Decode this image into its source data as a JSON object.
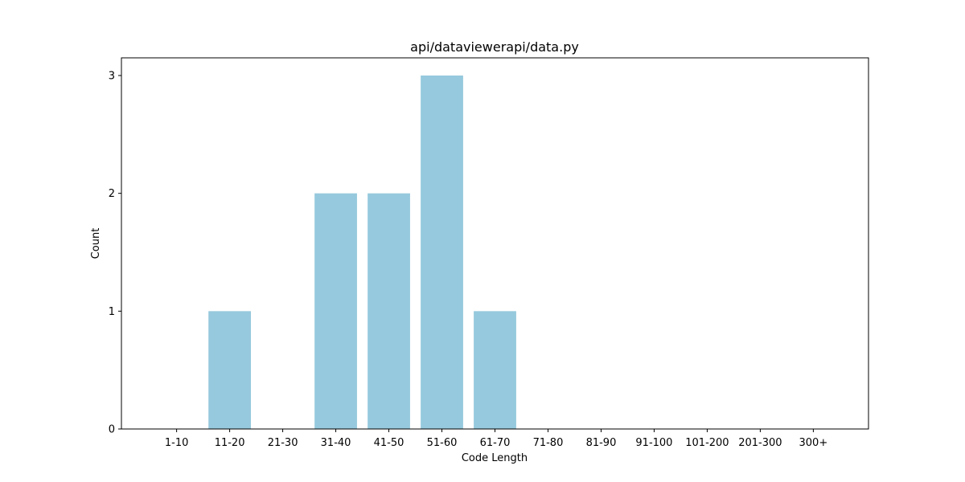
{
  "chart_data": {
    "type": "bar",
    "title": "api/dataviewerapi/data.py",
    "xlabel": "Code Length",
    "ylabel": "Count",
    "categories": [
      "1-10",
      "11-20",
      "21-30",
      "31-40",
      "41-50",
      "51-60",
      "61-70",
      "71-80",
      "81-90",
      "91-100",
      "101-200",
      "201-300",
      "300+"
    ],
    "values": [
      0,
      1,
      0,
      2,
      2,
      3,
      1,
      0,
      0,
      0,
      0,
      0,
      0
    ],
    "yticks": [
      0,
      1,
      2,
      3
    ],
    "ylim": [
      0,
      3.15
    ],
    "grid": false,
    "bar_color": "#96c9dd"
  }
}
